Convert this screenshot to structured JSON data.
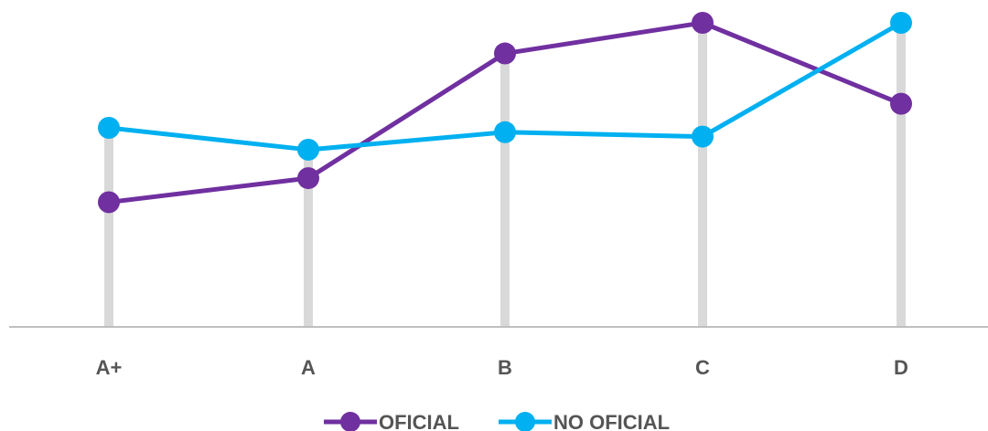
{
  "chart_data": {
    "type": "line",
    "categories": [
      "A+",
      "A",
      "B",
      "C",
      "D"
    ],
    "series": [
      {
        "name": "OFICIAL",
        "values": [
          18,
          29,
          86,
          100,
          63
        ],
        "color": "#7030a0"
      },
      {
        "name": "NO OFICIAL",
        "values": [
          52,
          42,
          50,
          48,
          100
        ],
        "color": "#00b0f0"
      }
    ],
    "ylim": [
      -39,
      100
    ],
    "grid": false,
    "drop_lines_color": "#d9d9d9",
    "axis_color": "#bfbfbf",
    "legend_position": "bottom"
  }
}
